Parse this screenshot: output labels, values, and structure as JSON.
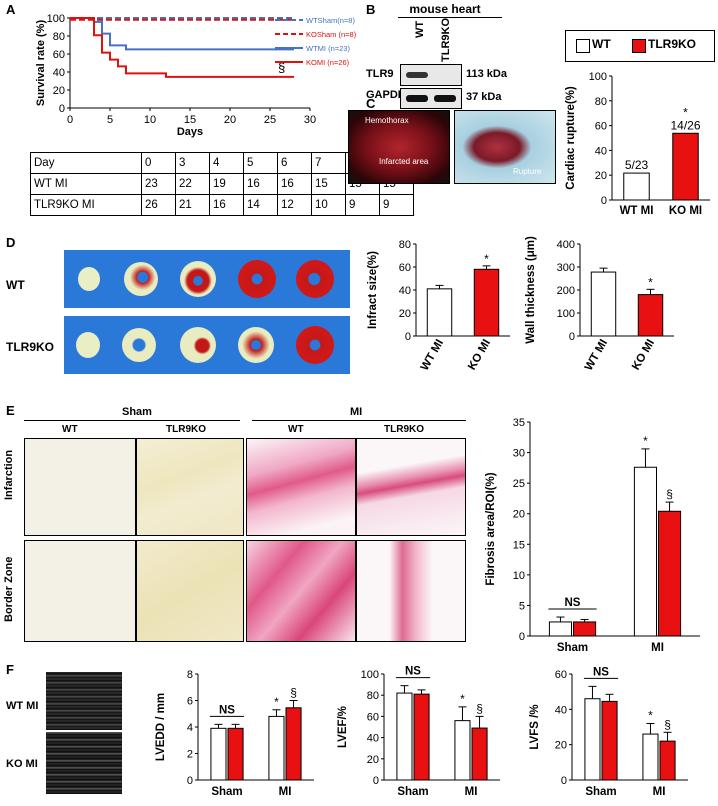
{
  "panels": {
    "a": "A",
    "b": "B",
    "c": "C",
    "d": "D",
    "e": "E",
    "f": "F"
  },
  "colors": {
    "wt": "#4472c4",
    "ko": "#e01010",
    "bar_wt": "#ffffff",
    "bar_ko": "#e81010"
  },
  "panel_a": {
    "ylabel": "Survival rate (%)",
    "xlabel": "Days",
    "section_mark": "§",
    "legend": [
      "WTSham(n=8)",
      "KOSham (n=8)",
      "WTMI (n=23)",
      "KOMI (n=26)"
    ],
    "table": {
      "header": [
        "Day",
        "0",
        "3",
        "4",
        "5",
        "6",
        "7",
        "12",
        "28"
      ],
      "rows": [
        [
          "WT MI",
          "23",
          "22",
          "19",
          "16",
          "16",
          "15",
          "15",
          "15"
        ],
        [
          "TLR9KO MI",
          "26",
          "21",
          "16",
          "14",
          "12",
          "10",
          "9",
          "9"
        ]
      ]
    }
  },
  "panel_b": {
    "title": "mouse heart",
    "lanes": [
      "WT",
      "TLR9KO"
    ],
    "bands": [
      {
        "name": "TLR9",
        "size": "113 kDa"
      },
      {
        "name": "GAPDH",
        "size": "37 kDa"
      }
    ]
  },
  "legend_box": {
    "wt": "WT",
    "ko": "TLR9KO"
  },
  "panel_c": {
    "labels": {
      "hemothorax": "Hemothorax",
      "infarcted": "Infarcted area",
      "rupture": "Rupture"
    }
  },
  "panel_d": {
    "row_labels": [
      "WT",
      "TLR9KO"
    ]
  },
  "panel_e": {
    "group_headers": [
      "Sham",
      "MI"
    ],
    "col_labels": [
      "WT",
      "TLR9KO",
      "WT",
      "TLR9KO"
    ],
    "row_labels": [
      "Infarction",
      "Border Zone"
    ]
  },
  "panel_f": {
    "row_labels": [
      "WT MI",
      "KO MI"
    ]
  },
  "chart_data": [
    {
      "id": "survival",
      "type": "line",
      "title": "",
      "xlabel": "Days",
      "ylabel": "Survival rate (%)",
      "xlim": [
        0,
        30
      ],
      "ylim": [
        0,
        100
      ],
      "xticks": [
        0,
        5,
        10,
        15,
        20,
        25,
        30
      ],
      "yticks": [
        0,
        20,
        40,
        60,
        80,
        100
      ],
      "series": [
        {
          "name": "WTSham(n=8)",
          "style": "dashed",
          "color": "#4472c4",
          "x": [
            0,
            28
          ],
          "y": [
            100,
            100
          ]
        },
        {
          "name": "KOSham (n=8)",
          "style": "dashed",
          "color": "#e01010",
          "x": [
            0,
            28
          ],
          "y": [
            98,
            98
          ]
        },
        {
          "name": "WTMI (n=23)",
          "style": "solid",
          "color": "#4472c4",
          "x": [
            0,
            3,
            4,
            5,
            6,
            7,
            28
          ],
          "y": [
            100,
            95.7,
            82.6,
            69.6,
            69.6,
            65.2,
            65.2
          ]
        },
        {
          "name": "KOMI (n=26)",
          "style": "solid",
          "color": "#e01010",
          "x": [
            0,
            3,
            4,
            5,
            6,
            7,
            12,
            28
          ],
          "y": [
            100,
            80.8,
            61.5,
            53.8,
            46.2,
            38.5,
            34.6,
            34.6
          ]
        }
      ]
    },
    {
      "id": "rupture",
      "type": "bar",
      "ylabel": "Cardiac rupture(%)",
      "categories": [
        "WT MI",
        "KO MI"
      ],
      "values": [
        21.7,
        53.8
      ],
      "ylim": [
        0,
        100
      ],
      "yticks": [
        0,
        20,
        40,
        60,
        80,
        100
      ],
      "data_labels": [
        "5/23",
        "14/26"
      ],
      "sig": [
        "",
        "*"
      ]
    },
    {
      "id": "infarct",
      "type": "bar",
      "ylabel": "Infract size(%)",
      "categories": [
        "WT MI",
        "KO MI"
      ],
      "values": [
        41,
        58
      ],
      "errors": [
        3,
        3
      ],
      "ylim": [
        0,
        80
      ],
      "yticks": [
        0,
        20,
        40,
        60,
        80
      ],
      "sig": [
        "",
        "*"
      ]
    },
    {
      "id": "wall",
      "type": "bar",
      "ylabel": "Wall thickness (μm)",
      "categories": [
        "WT MI",
        "KO MI"
      ],
      "values": [
        278,
        180
      ],
      "errors": [
        17,
        23
      ],
      "ylim": [
        0,
        400
      ],
      "yticks": [
        0,
        100,
        200,
        300,
        400
      ],
      "sig": [
        "",
        "*"
      ]
    },
    {
      "id": "fibrosis",
      "type": "bar",
      "ylabel": "Fibrosis area/ROI(%)",
      "categories": [
        "Sham",
        "MI"
      ],
      "series": [
        {
          "name": "WT",
          "values": [
            2.3,
            27.6
          ],
          "errors": [
            0.8,
            3
          ]
        },
        {
          "name": "TLR9KO",
          "values": [
            2.3,
            20.4
          ],
          "errors": [
            0.4,
            1.5
          ]
        }
      ],
      "ylim": [
        0,
        35
      ],
      "yticks": [
        0,
        5,
        10,
        15,
        20,
        25,
        30,
        35
      ],
      "sig_wt": [
        "",
        "*"
      ],
      "sig_ko": [
        "",
        "§"
      ],
      "ns_label": "NS"
    },
    {
      "id": "lvedd",
      "type": "bar",
      "ylabel": "LVEDD / mm",
      "categories": [
        "Sham",
        "MI"
      ],
      "series": [
        {
          "name": "WT",
          "values": [
            3.9,
            4.8
          ],
          "errors": [
            0.3,
            0.5
          ]
        },
        {
          "name": "TLR9KO",
          "values": [
            3.9,
            5.45
          ],
          "errors": [
            0.3,
            0.55
          ]
        }
      ],
      "ylim": [
        0,
        8
      ],
      "yticks": [
        0,
        2,
        4,
        6,
        8
      ],
      "sig_wt": [
        "",
        "*"
      ],
      "sig_ko": [
        "",
        "§"
      ],
      "ns_label": "NS"
    },
    {
      "id": "lvef",
      "type": "bar",
      "ylabel": "LVEF/%",
      "categories": [
        "Sham",
        "MI"
      ],
      "series": [
        {
          "name": "WT",
          "values": [
            82,
            56
          ],
          "errors": [
            7,
            13
          ]
        },
        {
          "name": "TLR9KO",
          "values": [
            81,
            49
          ],
          "errors": [
            4,
            11
          ]
        }
      ],
      "ylim": [
        0,
        100
      ],
      "yticks": [
        0,
        20,
        40,
        60,
        80,
        100
      ],
      "sig_wt": [
        "",
        "*"
      ],
      "sig_ko": [
        "",
        "§"
      ],
      "ns_label": "NS"
    },
    {
      "id": "lvfs",
      "type": "bar",
      "ylabel": "LVFS /%",
      "categories": [
        "Sham",
        "MI"
      ],
      "series": [
        {
          "name": "WT",
          "values": [
            46,
            26
          ],
          "errors": [
            7,
            6
          ]
        },
        {
          "name": "TLR9KO",
          "values": [
            44.5,
            22
          ],
          "errors": [
            4,
            5
          ]
        }
      ],
      "ylim": [
        0,
        60
      ],
      "yticks": [
        0,
        20,
        40,
        60
      ],
      "sig_wt": [
        "",
        "*"
      ],
      "sig_ko": [
        "",
        "§"
      ],
      "ns_label": "NS"
    }
  ]
}
